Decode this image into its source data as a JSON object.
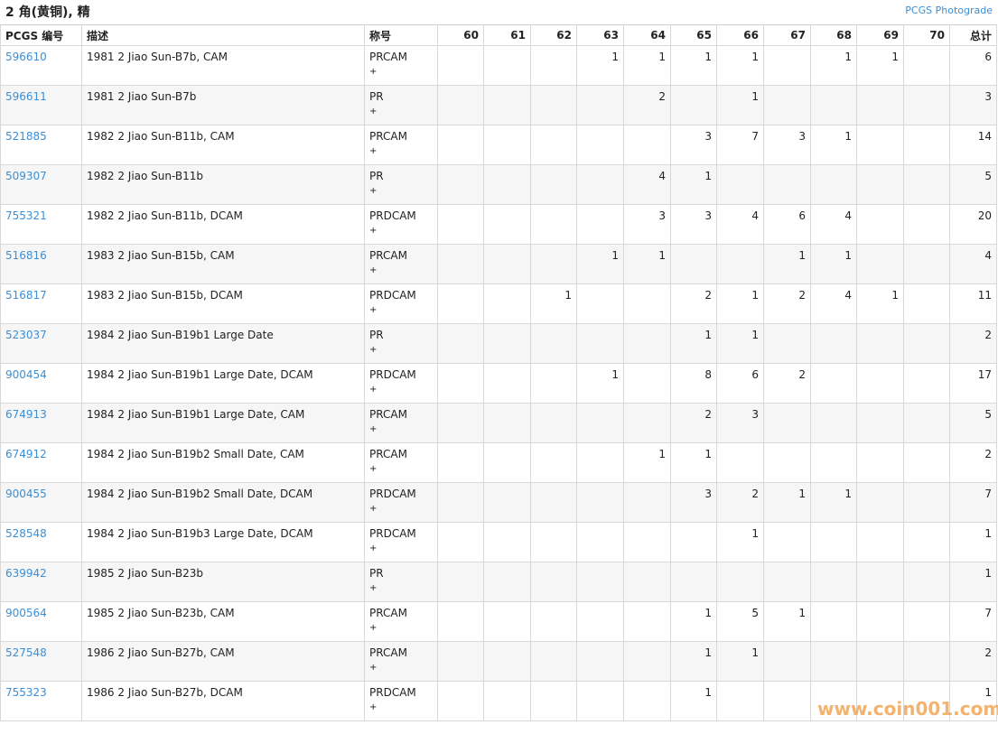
{
  "header": {
    "title": "2 角(黄铜), 精",
    "link": "PCGS Photograde"
  },
  "table": {
    "columns": [
      "PCGS 编号",
      "描述",
      "称号",
      "60",
      "61",
      "62",
      "63",
      "64",
      "65",
      "66",
      "67",
      "68",
      "69",
      "70",
      "总计"
    ],
    "rows": [
      [
        "596610",
        "1981 2 Jiao Sun-B7b, CAM",
        "PRCAM",
        "+",
        null,
        null,
        null,
        1,
        1,
        1,
        1,
        null,
        1,
        1,
        null,
        6
      ],
      [
        "596611",
        "1981 2 Jiao Sun-B7b",
        "PR",
        "+",
        null,
        null,
        null,
        null,
        2,
        null,
        1,
        null,
        null,
        null,
        null,
        3
      ],
      [
        "521885",
        "1982 2 Jiao Sun-B11b, CAM",
        "PRCAM",
        "+",
        null,
        null,
        null,
        null,
        null,
        3,
        7,
        3,
        1,
        null,
        null,
        14
      ],
      [
        "509307",
        "1982 2 Jiao Sun-B11b",
        "PR",
        "+",
        null,
        null,
        null,
        null,
        4,
        1,
        null,
        null,
        null,
        null,
        null,
        5
      ],
      [
        "755321",
        "1982 2 Jiao Sun-B11b, DCAM",
        "PRDCAM",
        "+",
        null,
        null,
        null,
        null,
        3,
        3,
        4,
        6,
        4,
        null,
        null,
        20
      ],
      [
        "516816",
        "1983 2 Jiao Sun-B15b, CAM",
        "PRCAM",
        "+",
        null,
        null,
        null,
        1,
        1,
        null,
        null,
        1,
        1,
        null,
        null,
        4
      ],
      [
        "516817",
        "1983 2 Jiao Sun-B15b, DCAM",
        "PRDCAM",
        "+",
        null,
        null,
        1,
        null,
        null,
        2,
        1,
        2,
        4,
        1,
        null,
        11
      ],
      [
        "523037",
        "1984 2 Jiao Sun-B19b1 Large Date",
        "PR",
        "+",
        null,
        null,
        null,
        null,
        null,
        1,
        1,
        null,
        null,
        null,
        null,
        2
      ],
      [
        "900454",
        "1984 2 Jiao Sun-B19b1 Large Date, DCAM",
        "PRDCAM",
        "+",
        null,
        null,
        null,
        1,
        null,
        8,
        6,
        2,
        null,
        null,
        null,
        17
      ],
      [
        "674913",
        "1984 2 Jiao Sun-B19b1 Large Date, CAM",
        "PRCAM",
        "+",
        null,
        null,
        null,
        null,
        null,
        2,
        3,
        null,
        null,
        null,
        null,
        5
      ],
      [
        "674912",
        "1984 2 Jiao Sun-B19b2 Small Date, CAM",
        "PRCAM",
        "+",
        null,
        null,
        null,
        null,
        1,
        1,
        null,
        null,
        null,
        null,
        null,
        2
      ],
      [
        "900455",
        "1984 2 Jiao Sun-B19b2 Small Date, DCAM",
        "PRDCAM",
        "+",
        null,
        null,
        null,
        null,
        null,
        3,
        2,
        1,
        1,
        null,
        null,
        7
      ],
      [
        "528548",
        "1984 2 Jiao Sun-B19b3 Large Date, DCAM",
        "PRDCAM",
        "+",
        null,
        null,
        null,
        null,
        null,
        null,
        1,
        null,
        null,
        null,
        null,
        1
      ],
      [
        "639942",
        "1985 2 Jiao Sun-B23b",
        "PR",
        "+",
        null,
        null,
        null,
        null,
        null,
        null,
        null,
        null,
        null,
        null,
        null,
        1
      ],
      [
        "900564",
        "1985 2 Jiao Sun-B23b, CAM",
        "PRCAM",
        "+",
        null,
        null,
        null,
        null,
        null,
        1,
        5,
        1,
        null,
        null,
        null,
        7
      ],
      [
        "527548",
        "1986 2 Jiao Sun-B27b, CAM",
        "PRCAM",
        "+",
        null,
        null,
        null,
        null,
        null,
        1,
        1,
        null,
        null,
        null,
        null,
        2
      ],
      [
        "755323",
        "1986 2 Jiao Sun-B27b, DCAM",
        "PRDCAM",
        "+",
        null,
        null,
        null,
        null,
        null,
        1,
        null,
        null,
        null,
        null,
        null,
        1
      ]
    ]
  },
  "watermark": "www.coin001.com"
}
